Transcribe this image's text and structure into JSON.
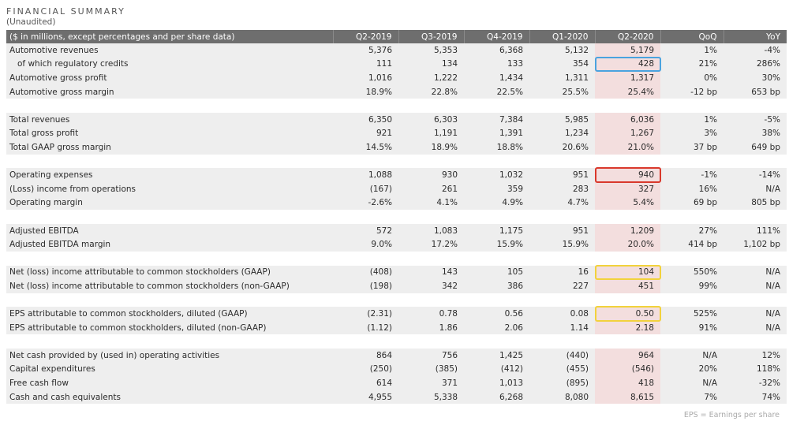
{
  "title": "FINANCIAL SUMMARY",
  "subtitle": "(Unaudited)",
  "header": [
    "($ in millions, except percentages and per share data)",
    "Q2-2019",
    "Q3-2019",
    "Q4-2019",
    "Q1-2020",
    "Q2-2020",
    "QoQ",
    "YoY"
  ],
  "rows": [
    {
      "label": "Automotive revenues",
      "values": [
        "5,376",
        "5,353",
        "6,368",
        "5,132",
        "5,179",
        "1%",
        "-4%"
      ]
    },
    {
      "label": "of which regulatory credits",
      "indent": true,
      "box": "blue",
      "values": [
        "111",
        "134",
        "133",
        "354",
        "428",
        "21%",
        "286%"
      ]
    },
    {
      "label": "Automotive gross profit",
      "values": [
        "1,016",
        "1,222",
        "1,434",
        "1,311",
        "1,317",
        "0%",
        "30%"
      ]
    },
    {
      "label": "Automotive gross margin",
      "values": [
        "18.9%",
        "22.8%",
        "22.5%",
        "25.5%",
        "25.4%",
        "-12 bp",
        "653 bp"
      ]
    },
    {
      "spacer": true
    },
    {
      "label": "Total revenues",
      "values": [
        "6,350",
        "6,303",
        "7,384",
        "5,985",
        "6,036",
        "1%",
        "-5%"
      ]
    },
    {
      "label": "Total gross profit",
      "values": [
        "921",
        "1,191",
        "1,391",
        "1,234",
        "1,267",
        "3%",
        "38%"
      ]
    },
    {
      "label": "Total GAAP gross margin",
      "values": [
        "14.5%",
        "18.9%",
        "18.8%",
        "20.6%",
        "21.0%",
        "37 bp",
        "649 bp"
      ]
    },
    {
      "spacer": true
    },
    {
      "label": "Operating expenses",
      "box": "red",
      "values": [
        "1,088",
        "930",
        "1,032",
        "951",
        "940",
        "-1%",
        "-14%"
      ]
    },
    {
      "label": "(Loss) income from operations",
      "values": [
        "(167)",
        "261",
        "359",
        "283",
        "327",
        "16%",
        "N/A"
      ]
    },
    {
      "label": "Operating margin",
      "values": [
        "-2.6%",
        "4.1%",
        "4.9%",
        "4.7%",
        "5.4%",
        "69 bp",
        "805 bp"
      ]
    },
    {
      "spacer": true
    },
    {
      "label": "Adjusted EBITDA",
      "values": [
        "572",
        "1,083",
        "1,175",
        "951",
        "1,209",
        "27%",
        "111%"
      ]
    },
    {
      "label": "Adjusted EBITDA margin",
      "values": [
        "9.0%",
        "17.2%",
        "15.9%",
        "15.9%",
        "20.0%",
        "414 bp",
        "1,102 bp"
      ]
    },
    {
      "spacer": true
    },
    {
      "label": "Net (loss) income attributable to common stockholders (GAAP)",
      "box": "yellow",
      "values": [
        "(408)",
        "143",
        "105",
        "16",
        "104",
        "550%",
        "N/A"
      ]
    },
    {
      "label": "Net (loss) income attributable to common stockholders (non-GAAP)",
      "values": [
        "(198)",
        "342",
        "386",
        "227",
        "451",
        "99%",
        "N/A"
      ]
    },
    {
      "spacer": true
    },
    {
      "label": "EPS attributable to common stockholders, diluted (GAAP)",
      "box": "yellow",
      "values": [
        "(2.31)",
        "0.78",
        "0.56",
        "0.08",
        "0.50",
        "525%",
        "N/A"
      ]
    },
    {
      "label": "EPS attributable to common stockholders, diluted (non-GAAP)",
      "values": [
        "(1.12)",
        "1.86",
        "2.06",
        "1.14",
        "2.18",
        "91%",
        "N/A"
      ]
    },
    {
      "spacer": true
    },
    {
      "label": "Net cash provided by (used in) operating activities",
      "values": [
        "864",
        "756",
        "1,425",
        "(440)",
        "964",
        "N/A",
        "12%"
      ]
    },
    {
      "label": "Capital expenditures",
      "values": [
        "(250)",
        "(385)",
        "(412)",
        "(455)",
        "(546)",
        "20%",
        "118%"
      ]
    },
    {
      "label": "Free cash flow",
      "values": [
        "614",
        "371",
        "1,013",
        "(895)",
        "418",
        "N/A",
        "-32%"
      ]
    },
    {
      "label": "Cash and cash equivalents",
      "values": [
        "4,955",
        "5,338",
        "6,268",
        "8,080",
        "8,615",
        "7%",
        "74%"
      ]
    }
  ],
  "footnote": "EPS = Earnings per share",
  "colors": {
    "header_bg": "#6e6e6e",
    "row_bg": "#eeeeee",
    "highlight_col_bg": "#f3dede",
    "box_blue": "#4aa3df",
    "box_red": "#d9392c",
    "box_yellow": "#f2d23c"
  }
}
